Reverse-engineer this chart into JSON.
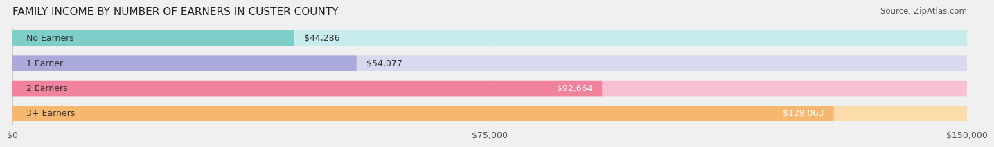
{
  "title": "FAMILY INCOME BY NUMBER OF EARNERS IN CUSTER COUNTY",
  "source": "Source: ZipAtlas.com",
  "categories": [
    "No Earners",
    "1 Earner",
    "2 Earners",
    "3+ Earners"
  ],
  "values": [
    44286,
    54077,
    92664,
    129063
  ],
  "value_labels": [
    "$44,286",
    "$54,077",
    "$92,664",
    "$129,063"
  ],
  "bar_colors": [
    "#7ECECA",
    "#AAAADD",
    "#F0829E",
    "#F5B86E"
  ],
  "bar_colors_light": [
    "#C8ECEC",
    "#D8D8EE",
    "#F8C0D0",
    "#FCDCAA"
  ],
  "xlim": [
    0,
    150000
  ],
  "xtick_values": [
    0,
    75000,
    150000
  ],
  "xtick_labels": [
    "$0",
    "$75,000",
    "$150,000"
  ],
  "bg_color": "#f0f0f0",
  "bar_bg_color": "#e8e8e8",
  "title_fontsize": 11,
  "source_fontsize": 8.5,
  "label_fontsize": 9,
  "value_fontsize": 9,
  "tick_fontsize": 9
}
